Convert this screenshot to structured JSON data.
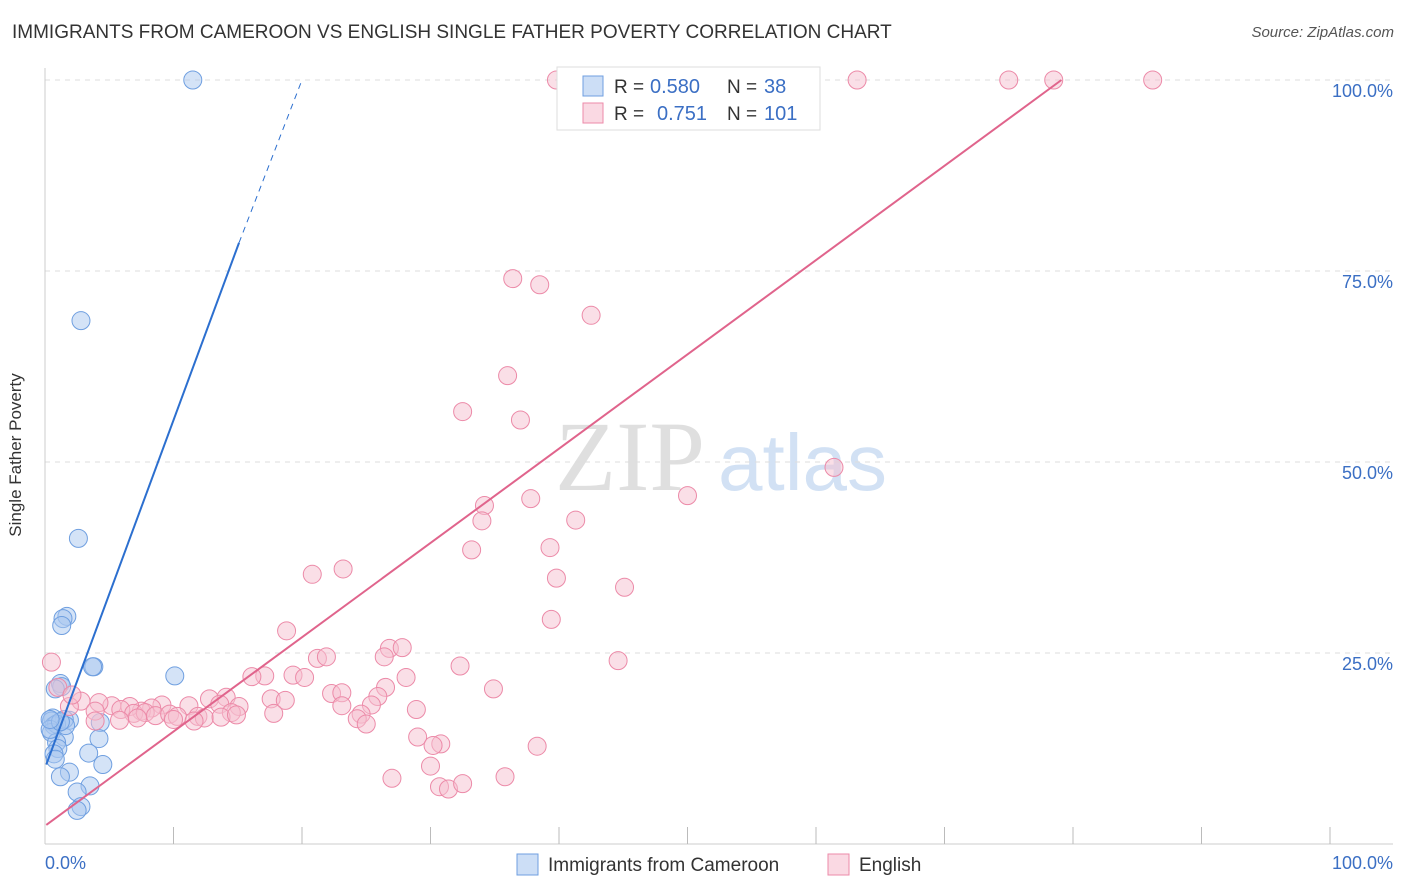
{
  "title": "IMMIGRANTS FROM CAMEROON VS ENGLISH SINGLE FATHER POVERTY CORRELATION CHART",
  "source": "Source: ZipAtlas.com",
  "watermark": {
    "zip": "ZIP",
    "atlas": "atlas"
  },
  "colors": {
    "blue": "#6f9fe0",
    "blue_fill": "#aac8f0",
    "blue_line": "#2c6fcf",
    "pink": "#ec8aa8",
    "pink_fill": "#f6bfd0",
    "pink_line": "#e0648c",
    "axis_label": "#3b6fc4",
    "grid": "#dddddd"
  },
  "chart_data": {
    "type": "scatter",
    "xlabel": "",
    "ylabel": "Single Father Poverty",
    "xlim": [
      0,
      100
    ],
    "ylim": [
      0,
      100
    ],
    "x_tick_labels": [
      "0.0%",
      "100.0%"
    ],
    "y_tick_labels": [
      "25.0%",
      "50.0%",
      "75.0%",
      "100.0%"
    ],
    "y_ticks": [
      25,
      50,
      75,
      100
    ],
    "grid": true,
    "legend_position": "top-center",
    "stats": [
      {
        "r_label": "R =",
        "r": "0.580",
        "n_label": "N =",
        "n": "38"
      },
      {
        "r_label": "R =",
        "r": "0.751",
        "n_label": "N =",
        "n": "101"
      }
    ],
    "series": [
      {
        "name": "Immigrants from Cameroon",
        "color_key": "blue",
        "trend": {
          "x1": 0.1,
          "y1": 10.4,
          "x2": 15.1,
          "y2": 78.7,
          "dash_to_x": 20.0,
          "dash_to_y": 100.0
        },
        "points": [
          [
            11.5,
            100.0
          ],
          [
            2.8,
            68.5
          ],
          [
            2.6,
            40.0
          ],
          [
            1.7,
            29.8
          ],
          [
            1.4,
            29.5
          ],
          [
            1.3,
            28.6
          ],
          [
            3.8,
            23.2
          ],
          [
            3.7,
            23.2
          ],
          [
            10.1,
            22.0
          ],
          [
            1.2,
            21.0
          ],
          [
            1.3,
            20.6
          ],
          [
            0.8,
            20.3
          ],
          [
            0.6,
            16.5
          ],
          [
            0.5,
            16.1
          ],
          [
            1.9,
            16.2
          ],
          [
            1.5,
            16.3
          ],
          [
            4.3,
            15.9
          ],
          [
            0.7,
            15.5
          ],
          [
            0.9,
            15.7
          ],
          [
            0.5,
            14.6
          ],
          [
            1.5,
            14.0
          ],
          [
            4.2,
            13.8
          ],
          [
            0.9,
            13.3
          ],
          [
            1.0,
            12.5
          ],
          [
            0.7,
            11.8
          ],
          [
            0.8,
            11.1
          ],
          [
            3.4,
            11.9
          ],
          [
            4.5,
            10.4
          ],
          [
            1.9,
            9.4
          ],
          [
            1.2,
            8.8
          ],
          [
            3.5,
            7.6
          ],
          [
            2.5,
            6.8
          ],
          [
            2.8,
            4.9
          ],
          [
            2.5,
            4.4
          ],
          [
            0.4,
            15.0
          ],
          [
            1.6,
            15.5
          ],
          [
            1.2,
            16.0
          ],
          [
            0.4,
            16.3
          ]
        ]
      },
      {
        "name": "English",
        "color_key": "pink",
        "trend": {
          "x1": 0.1,
          "y1": 2.5,
          "x2": 79.1,
          "y2": 100.0
        },
        "points": [
          [
            39.8,
            100.0
          ],
          [
            43.0,
            100.0
          ],
          [
            45.5,
            100.0
          ],
          [
            46.3,
            100.0
          ],
          [
            47.0,
            100.0
          ],
          [
            48.5,
            100.0
          ],
          [
            52.5,
            100.0
          ],
          [
            56.5,
            100.0
          ],
          [
            63.2,
            100.0
          ],
          [
            75.0,
            100.0
          ],
          [
            78.5,
            100.0
          ],
          [
            86.2,
            100.0
          ],
          [
            36.4,
            74.0
          ],
          [
            38.5,
            73.2
          ],
          [
            42.5,
            69.2
          ],
          [
            36.0,
            61.3
          ],
          [
            32.5,
            56.6
          ],
          [
            37.0,
            55.5
          ],
          [
            61.4,
            49.3
          ],
          [
            50.0,
            45.6
          ],
          [
            37.8,
            45.2
          ],
          [
            34.2,
            44.3
          ],
          [
            34.0,
            42.3
          ],
          [
            41.3,
            42.4
          ],
          [
            33.2,
            38.5
          ],
          [
            39.3,
            38.8
          ],
          [
            39.8,
            34.8
          ],
          [
            45.1,
            33.6
          ],
          [
            20.8,
            35.3
          ],
          [
            23.2,
            36.0
          ],
          [
            39.4,
            29.4
          ],
          [
            18.8,
            27.9
          ],
          [
            26.8,
            25.6
          ],
          [
            27.8,
            25.7
          ],
          [
            44.6,
            24.0
          ],
          [
            26.4,
            24.5
          ],
          [
            21.2,
            24.3
          ],
          [
            21.9,
            24.5
          ],
          [
            32.3,
            23.3
          ],
          [
            17.1,
            22.0
          ],
          [
            16.1,
            21.9
          ],
          [
            19.3,
            22.1
          ],
          [
            20.2,
            21.8
          ],
          [
            28.1,
            21.8
          ],
          [
            34.9,
            20.3
          ],
          [
            26.5,
            20.5
          ],
          [
            22.3,
            19.7
          ],
          [
            23.1,
            19.8
          ],
          [
            25.9,
            19.3
          ],
          [
            17.6,
            19.0
          ],
          [
            18.7,
            18.8
          ],
          [
            12.8,
            19.0
          ],
          [
            14.1,
            19.2
          ],
          [
            13.6,
            18.3
          ],
          [
            23.1,
            18.1
          ],
          [
            25.4,
            18.2
          ],
          [
            24.6,
            17.0
          ],
          [
            28.9,
            17.6
          ],
          [
            15.1,
            18.0
          ],
          [
            14.5,
            17.2
          ],
          [
            11.2,
            18.1
          ],
          [
            9.1,
            18.2
          ],
          [
            8.3,
            17.8
          ],
          [
            7.5,
            17.4
          ],
          [
            6.6,
            18.0
          ],
          [
            5.2,
            18.1
          ],
          [
            4.2,
            18.5
          ],
          [
            2.8,
            18.7
          ],
          [
            1.9,
            18.0
          ],
          [
            1.0,
            20.5
          ],
          [
            0.5,
            23.8
          ],
          [
            2.1,
            19.5
          ],
          [
            3.9,
            17.4
          ],
          [
            5.9,
            17.6
          ],
          [
            6.9,
            17.1
          ],
          [
            7.8,
            17.2
          ],
          [
            8.6,
            16.8
          ],
          [
            9.7,
            17.0
          ],
          [
            10.3,
            16.7
          ],
          [
            11.9,
            16.7
          ],
          [
            12.4,
            16.5
          ],
          [
            13.7,
            16.6
          ],
          [
            14.9,
            16.9
          ],
          [
            5.8,
            16.2
          ],
          [
            7.2,
            16.5
          ],
          [
            3.9,
            16.1
          ],
          [
            10.0,
            16.3
          ],
          [
            11.6,
            16.1
          ],
          [
            17.8,
            17.1
          ],
          [
            24.3,
            16.4
          ],
          [
            25.0,
            15.7
          ],
          [
            29.0,
            14.0
          ],
          [
            30.8,
            13.1
          ],
          [
            30.2,
            12.9
          ],
          [
            38.3,
            12.8
          ],
          [
            30.0,
            10.2
          ],
          [
            27.0,
            8.6
          ],
          [
            30.7,
            7.5
          ],
          [
            35.8,
            8.8
          ],
          [
            31.4,
            7.2
          ],
          [
            32.5,
            7.9
          ]
        ]
      }
    ]
  }
}
